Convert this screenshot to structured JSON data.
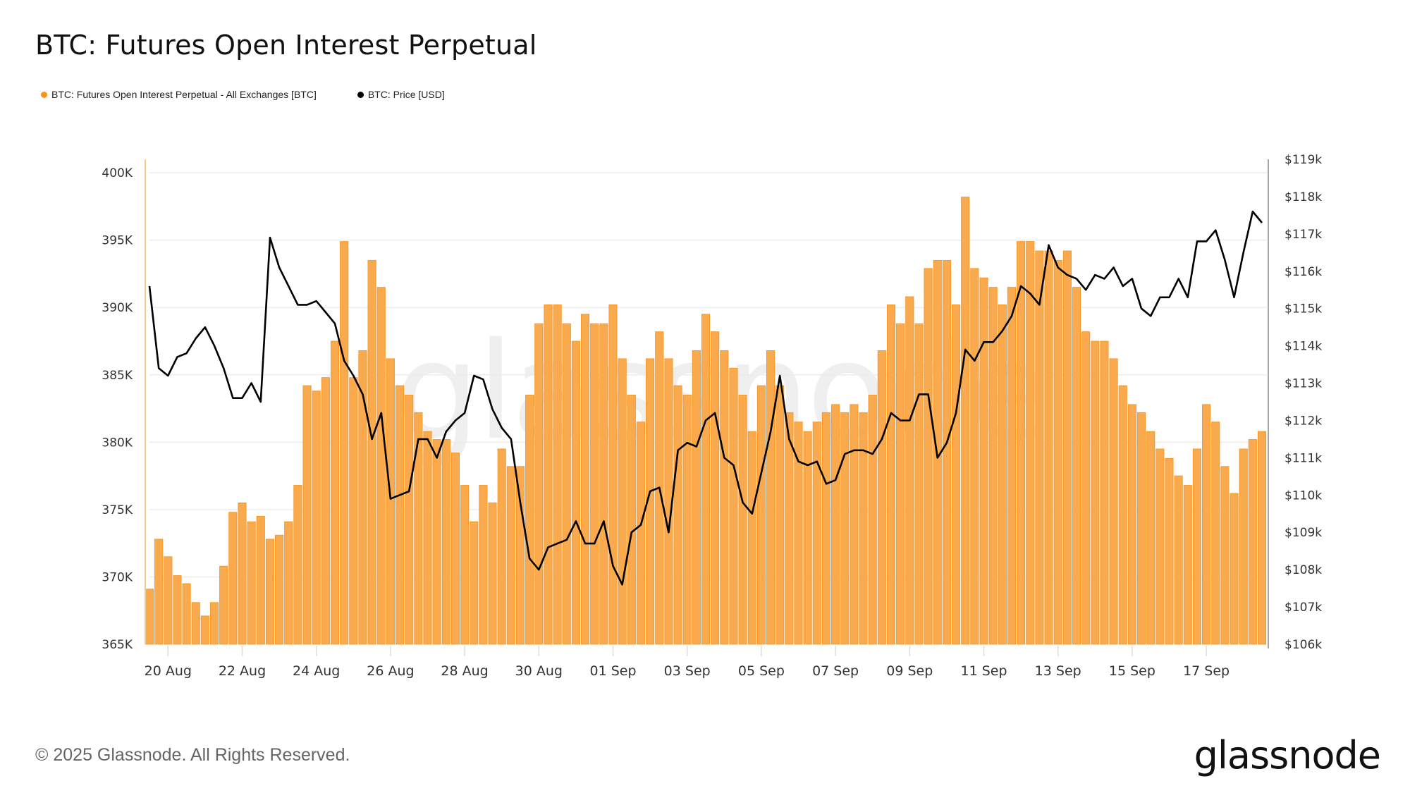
{
  "chart_data": {
    "type": "bar+line",
    "title": "BTC: Futures Open Interest Perpetual",
    "legend_placement": "top-left",
    "grid": true,
    "series": [
      {
        "name": "BTC: Futures Open Interest Perpetual - All Exchanges [BTC]",
        "type": "bar",
        "axis": "left",
        "color": "#F7931A"
      },
      {
        "name": "BTC: Price [USD]",
        "type": "line",
        "axis": "right",
        "color": "#000000"
      }
    ],
    "left_axis": {
      "ylim": [
        365,
        401
      ],
      "ticks": [
        365,
        370,
        375,
        380,
        385,
        390,
        395,
        400
      ],
      "tick_labels": [
        "365K",
        "370K",
        "375K",
        "380K",
        "385K",
        "390K",
        "395K",
        "400K"
      ]
    },
    "right_axis": {
      "ylim": [
        106,
        119
      ],
      "ticks": [
        106,
        107,
        108,
        109,
        110,
        111,
        112,
        113,
        114,
        115,
        116,
        117,
        118,
        119
      ],
      "tick_labels": [
        "$106k",
        "$107k",
        "$108k",
        "$109k",
        "$110k",
        "$111k",
        "$112k",
        "$113k",
        "$114k",
        "$115k",
        "$116k",
        "$117k",
        "$118k",
        "$119k"
      ]
    },
    "x_tick_labels": [
      {
        "t": "Aug 20 00:00",
        "label": "20 Aug"
      },
      {
        "t": "Aug 22 00:00",
        "label": "22 Aug"
      },
      {
        "t": "Aug 24 00:00",
        "label": "24 Aug"
      },
      {
        "t": "Aug 26 00:00",
        "label": "26 Aug"
      },
      {
        "t": "Aug 28 00:00",
        "label": "28 Aug"
      },
      {
        "t": "Aug 30 00:00",
        "label": "30 Aug"
      },
      {
        "t": "Sep 01 00:00",
        "label": "01 Sep"
      },
      {
        "t": "Sep 03 00:00",
        "label": "03 Sep"
      },
      {
        "t": "Sep 05 00:00",
        "label": "05 Sep"
      },
      {
        "t": "Sep 07 00:00",
        "label": "07 Sep"
      },
      {
        "t": "Sep 09 00:00",
        "label": "09 Sep"
      },
      {
        "t": "Sep 11 00:00",
        "label": "11 Sep"
      },
      {
        "t": "Sep 13 00:00",
        "label": "13 Sep"
      },
      {
        "t": "Sep 15 00:00",
        "label": "15 Sep"
      },
      {
        "t": "Sep 17 00:00",
        "label": "17 Sep"
      }
    ],
    "columns": [
      "time",
      "open_interest_k_btc",
      "price_k_usd"
    ],
    "rows": [
      [
        "Aug 19 12:00",
        369.1,
        115.6
      ],
      [
        "Aug 19 18:00",
        372.8,
        113.4
      ],
      [
        "Aug 20 00:00",
        371.5,
        113.2
      ],
      [
        "Aug 20 06:00",
        370.1,
        113.7
      ],
      [
        "Aug 20 12:00",
        369.5,
        113.8
      ],
      [
        "Aug 20 18:00",
        368.1,
        114.2
      ],
      [
        "Aug 21 00:00",
        367.1,
        114.5
      ],
      [
        "Aug 21 06:00",
        368.1,
        114.0
      ],
      [
        "Aug 21 12:00",
        370.8,
        113.4
      ],
      [
        "Aug 21 18:00",
        374.8,
        112.6
      ],
      [
        "Aug 22 00:00",
        375.5,
        112.6
      ],
      [
        "Aug 22 06:00",
        374.1,
        113.0
      ],
      [
        "Aug 22 12:00",
        374.5,
        112.5
      ],
      [
        "Aug 22 18:00",
        372.8,
        116.9
      ],
      [
        "Aug 23 00:00",
        373.1,
        116.1
      ],
      [
        "Aug 23 06:00",
        374.1,
        115.6
      ],
      [
        "Aug 23 12:00",
        376.8,
        115.1
      ],
      [
        "Aug 23 18:00",
        384.2,
        115.1
      ],
      [
        "Aug 24 00:00",
        383.8,
        115.2
      ],
      [
        "Aug 24 06:00",
        384.8,
        114.9
      ],
      [
        "Aug 24 12:00",
        387.5,
        114.6
      ],
      [
        "Aug 24 18:00",
        394.9,
        113.6
      ],
      [
        "Aug 25 00:00",
        384.8,
        113.2
      ],
      [
        "Aug 25 06:00",
        386.8,
        112.7
      ],
      [
        "Aug 25 12:00",
        393.5,
        111.5
      ],
      [
        "Aug 25 18:00",
        391.5,
        112.2
      ],
      [
        "Aug 26 00:00",
        386.2,
        109.9
      ],
      [
        "Aug 26 06:00",
        384.2,
        110.0
      ],
      [
        "Aug 26 12:00",
        383.5,
        110.1
      ],
      [
        "Aug 26 18:00",
        382.2,
        111.5
      ],
      [
        "Aug 27 00:00",
        380.8,
        111.5
      ],
      [
        "Aug 27 06:00",
        380.2,
        111.0
      ],
      [
        "Aug 27 12:00",
        380.2,
        111.7
      ],
      [
        "Aug 27 18:00",
        379.2,
        112.0
      ],
      [
        "Aug 28 00:00",
        376.8,
        112.2
      ],
      [
        "Aug 28 06:00",
        374.1,
        113.2
      ],
      [
        "Aug 28 12:00",
        376.8,
        113.1
      ],
      [
        "Aug 28 18:00",
        375.5,
        112.3
      ],
      [
        "Aug 29 00:00",
        379.5,
        111.8
      ],
      [
        "Aug 29 06:00",
        378.2,
        111.5
      ],
      [
        "Aug 29 12:00",
        378.2,
        109.8
      ],
      [
        "Aug 29 18:00",
        383.5,
        108.3
      ],
      [
        "Aug 30 00:00",
        388.8,
        108.0
      ],
      [
        "Aug 30 06:00",
        390.2,
        108.6
      ],
      [
        "Aug 30 12:00",
        390.2,
        108.7
      ],
      [
        "Aug 30 18:00",
        388.8,
        108.8
      ],
      [
        "Aug 31 00:00",
        387.5,
        109.3
      ],
      [
        "Aug 31 06:00",
        389.5,
        108.7
      ],
      [
        "Aug 31 12:00",
        388.8,
        108.7
      ],
      [
        "Aug 31 18:00",
        388.8,
        109.3
      ],
      [
        "Sep 01 00:00",
        390.2,
        108.1
      ],
      [
        "Sep 01 06:00",
        386.2,
        107.6
      ],
      [
        "Sep 01 12:00",
        383.5,
        109.0
      ],
      [
        "Sep 01 18:00",
        381.5,
        109.2
      ],
      [
        "Sep 02 00:00",
        386.2,
        110.1
      ],
      [
        "Sep 02 06:00",
        388.2,
        110.2
      ],
      [
        "Sep 02 12:00",
        386.2,
        109.0
      ],
      [
        "Sep 02 18:00",
        384.2,
        111.2
      ],
      [
        "Sep 03 00:00",
        383.5,
        111.4
      ],
      [
        "Sep 03 06:00",
        386.8,
        111.3
      ],
      [
        "Sep 03 12:00",
        389.5,
        112.0
      ],
      [
        "Sep 03 18:00",
        388.2,
        112.2
      ],
      [
        "Sep 04 00:00",
        386.8,
        111.0
      ],
      [
        "Sep 04 06:00",
        385.5,
        110.8
      ],
      [
        "Sep 04 12:00",
        383.5,
        109.8
      ],
      [
        "Sep 04 18:00",
        380.8,
        109.5
      ],
      [
        "Sep 05 00:00",
        384.2,
        110.6
      ],
      [
        "Sep 05 06:00",
        386.8,
        111.7
      ],
      [
        "Sep 05 12:00",
        384.2,
        113.2
      ],
      [
        "Sep 05 18:00",
        382.2,
        111.5
      ],
      [
        "Sep 06 00:00",
        381.5,
        110.9
      ],
      [
        "Sep 06 06:00",
        380.8,
        110.8
      ],
      [
        "Sep 06 12:00",
        381.5,
        110.9
      ],
      [
        "Sep 06 18:00",
        382.2,
        110.3
      ],
      [
        "Sep 07 00:00",
        382.8,
        110.4
      ],
      [
        "Sep 07 06:00",
        382.2,
        111.1
      ],
      [
        "Sep 07 12:00",
        382.8,
        111.2
      ],
      [
        "Sep 07 18:00",
        382.2,
        111.2
      ],
      [
        "Sep 08 00:00",
        383.5,
        111.1
      ],
      [
        "Sep 08 06:00",
        386.8,
        111.5
      ],
      [
        "Sep 08 12:00",
        390.2,
        112.2
      ],
      [
        "Sep 08 18:00",
        388.8,
        112.0
      ],
      [
        "Sep 09 00:00",
        390.8,
        112.0
      ],
      [
        "Sep 09 06:00",
        388.8,
        112.7
      ],
      [
        "Sep 09 12:00",
        392.9,
        112.7
      ],
      [
        "Sep 09 18:00",
        393.5,
        111.0
      ],
      [
        "Sep 10 00:00",
        393.5,
        111.4
      ],
      [
        "Sep 10 06:00",
        390.2,
        112.2
      ],
      [
        "Sep 10 12:00",
        398.2,
        113.9
      ],
      [
        "Sep 10 18:00",
        392.9,
        113.6
      ],
      [
        "Sep 11 00:00",
        392.2,
        114.1
      ],
      [
        "Sep 11 06:00",
        391.5,
        114.1
      ],
      [
        "Sep 11 12:00",
        390.2,
        114.4
      ],
      [
        "Sep 11 18:00",
        391.5,
        114.8
      ],
      [
        "Sep 12 00:00",
        394.9,
        115.6
      ],
      [
        "Sep 12 06:00",
        394.9,
        115.4
      ],
      [
        "Sep 12 12:00",
        394.2,
        115.1
      ],
      [
        "Sep 12 18:00",
        394.2,
        116.7
      ],
      [
        "Sep 13 00:00",
        393.5,
        116.1
      ],
      [
        "Sep 13 06:00",
        394.2,
        115.9
      ],
      [
        "Sep 13 12:00",
        391.5,
        115.8
      ],
      [
        "Sep 13 18:00",
        388.2,
        115.5
      ],
      [
        "Sep 14 00:00",
        387.5,
        115.9
      ],
      [
        "Sep 14 06:00",
        387.5,
        115.8
      ],
      [
        "Sep 14 12:00",
        386.2,
        116.1
      ],
      [
        "Sep 14 18:00",
        384.2,
        115.6
      ],
      [
        "Sep 15 00:00",
        382.8,
        115.8
      ],
      [
        "Sep 15 06:00",
        382.2,
        115.0
      ],
      [
        "Sep 15 12:00",
        380.8,
        114.8
      ],
      [
        "Sep 15 18:00",
        379.5,
        115.3
      ],
      [
        "Sep 16 00:00",
        378.8,
        115.3
      ],
      [
        "Sep 16 06:00",
        377.5,
        115.8
      ],
      [
        "Sep 16 12:00",
        376.8,
        115.3
      ],
      [
        "Sep 16 18:00",
        379.5,
        116.8
      ],
      [
        "Sep 17 00:00",
        382.8,
        116.8
      ],
      [
        "Sep 17 06:00",
        381.5,
        117.1
      ],
      [
        "Sep 17 12:00",
        378.2,
        116.3
      ],
      [
        "Sep 17 18:00",
        376.2,
        115.3
      ],
      [
        "Sep 18 00:00",
        379.5,
        116.5
      ],
      [
        "Sep 18 06:00",
        380.2,
        117.6
      ],
      [
        "Sep 18 12:00",
        380.8,
        117.3
      ]
    ]
  },
  "footer": {
    "copyright": "© 2025 Glassnode. All Rights Reserved.",
    "logo": "glassnode",
    "watermark": "glassnode"
  }
}
